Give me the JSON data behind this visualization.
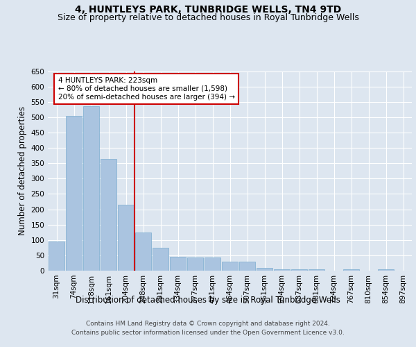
{
  "title": "4, HUNTLEYS PARK, TUNBRIDGE WELLS, TN4 9TD",
  "subtitle": "Size of property relative to detached houses in Royal Tunbridge Wells",
  "xlabel": "Distribution of detached houses by size in Royal Tunbridge Wells",
  "ylabel": "Number of detached properties",
  "footer_line1": "Contains HM Land Registry data © Crown copyright and database right 2024.",
  "footer_line2": "Contains public sector information licensed under the Open Government Licence v3.0.",
  "bar_labels": [
    "31sqm",
    "74sqm",
    "118sqm",
    "161sqm",
    "204sqm",
    "248sqm",
    "291sqm",
    "334sqm",
    "377sqm",
    "421sqm",
    "464sqm",
    "507sqm",
    "551sqm",
    "594sqm",
    "637sqm",
    "681sqm",
    "724sqm",
    "767sqm",
    "810sqm",
    "854sqm",
    "897sqm"
  ],
  "bar_values": [
    95,
    505,
    535,
    365,
    215,
    125,
    75,
    45,
    42,
    42,
    30,
    30,
    10,
    5,
    5,
    5,
    0,
    5,
    0,
    5,
    0
  ],
  "bar_color": "#aac4e0",
  "bar_edge_color": "#7aadd0",
  "red_line_x": 4.5,
  "annotation_text": "4 HUNTLEYS PARK: 223sqm\n← 80% of detached houses are smaller (1,598)\n20% of semi-detached houses are larger (394) →",
  "annotation_box_color": "#ffffff",
  "annotation_box_edge_color": "#cc0000",
  "red_line_color": "#cc0000",
  "ylim": [
    0,
    650
  ],
  "yticks": [
    0,
    50,
    100,
    150,
    200,
    250,
    300,
    350,
    400,
    450,
    500,
    550,
    600,
    650
  ],
  "background_color": "#dde6f0",
  "plot_background_color": "#dde6f0",
  "grid_color": "#ffffff",
  "title_fontsize": 10,
  "subtitle_fontsize": 9,
  "xlabel_fontsize": 8.5,
  "ylabel_fontsize": 8.5,
  "tick_fontsize": 7.5,
  "footer_fontsize": 6.5
}
